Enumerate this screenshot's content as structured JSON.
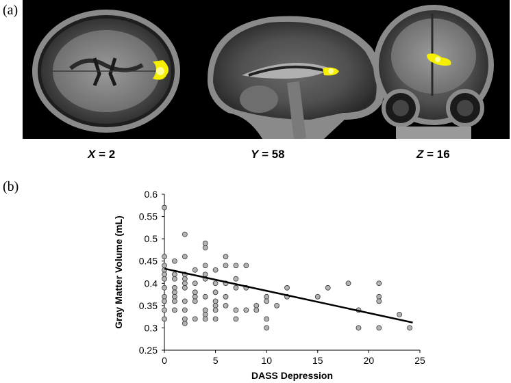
{
  "panels": {
    "a_label": "(a)",
    "b_label": "(b)"
  },
  "brain_slices": [
    {
      "axis": "X",
      "value": "2",
      "view": "axial"
    },
    {
      "axis": "Y",
      "value": "58",
      "view": "sagittal"
    },
    {
      "axis": "Z",
      "value": "16",
      "view": "coronal"
    }
  ],
  "colors": {
    "blob": "#f4f000",
    "blob_core": "#ffff99",
    "marker_fill": "#b3b3b3",
    "marker_stroke": "#333333",
    "trend_line": "#000000"
  },
  "chart_data": {
    "type": "scatter",
    "xlabel": "DASS Depression",
    "ylabel": "Gray Matter Volume (mL)",
    "xlim": [
      0,
      25
    ],
    "ylim": [
      0.25,
      0.6
    ],
    "xticks": [
      0,
      5,
      10,
      15,
      20,
      25
    ],
    "yticks": [
      0.25,
      0.3,
      0.35,
      0.4,
      0.45,
      0.5,
      0.55,
      0.6
    ],
    "grid": false,
    "trend_line": {
      "x": [
        0,
        24.3
      ],
      "y": [
        0.433,
        0.312
      ]
    },
    "points": [
      [
        0,
        0.57
      ],
      [
        0,
        0.46
      ],
      [
        0,
        0.44
      ],
      [
        0,
        0.43
      ],
      [
        0,
        0.42
      ],
      [
        0,
        0.41
      ],
      [
        0,
        0.39
      ],
      [
        0,
        0.37
      ],
      [
        0,
        0.36
      ],
      [
        0,
        0.34
      ],
      [
        0,
        0.32
      ],
      [
        1,
        0.45
      ],
      [
        1,
        0.42
      ],
      [
        1,
        0.41
      ],
      [
        1,
        0.39
      ],
      [
        1,
        0.38
      ],
      [
        1,
        0.37
      ],
      [
        1,
        0.36
      ],
      [
        1,
        0.34
      ],
      [
        2,
        0.51
      ],
      [
        2,
        0.46
      ],
      [
        2,
        0.42
      ],
      [
        2,
        0.41
      ],
      [
        2,
        0.4
      ],
      [
        2,
        0.39
      ],
      [
        2,
        0.36
      ],
      [
        2,
        0.34
      ],
      [
        2,
        0.32
      ],
      [
        2,
        0.31
      ],
      [
        3,
        0.43
      ],
      [
        3,
        0.4
      ],
      [
        3,
        0.38
      ],
      [
        3,
        0.37
      ],
      [
        3,
        0.36
      ],
      [
        3,
        0.32
      ],
      [
        4,
        0.49
      ],
      [
        4,
        0.48
      ],
      [
        4,
        0.44
      ],
      [
        4,
        0.42
      ],
      [
        4,
        0.41
      ],
      [
        4,
        0.37
      ],
      [
        4,
        0.34
      ],
      [
        4,
        0.33
      ],
      [
        4,
        0.32
      ],
      [
        5,
        0.43
      ],
      [
        5,
        0.4
      ],
      [
        5,
        0.38
      ],
      [
        5,
        0.36
      ],
      [
        5,
        0.35
      ],
      [
        5,
        0.34
      ],
      [
        5,
        0.32
      ],
      [
        6,
        0.46
      ],
      [
        6,
        0.44
      ],
      [
        6,
        0.4
      ],
      [
        6,
        0.37
      ],
      [
        6,
        0.35
      ],
      [
        7,
        0.44
      ],
      [
        7,
        0.41
      ],
      [
        7,
        0.39
      ],
      [
        7,
        0.34
      ],
      [
        7,
        0.32
      ],
      [
        8,
        0.44
      ],
      [
        8,
        0.39
      ],
      [
        8,
        0.34
      ],
      [
        9,
        0.35
      ],
      [
        9,
        0.34
      ],
      [
        10,
        0.37
      ],
      [
        10,
        0.36
      ],
      [
        10,
        0.32
      ],
      [
        10,
        0.3
      ],
      [
        11,
        0.35
      ],
      [
        12,
        0.39
      ],
      [
        12,
        0.37
      ],
      [
        15,
        0.37
      ],
      [
        16,
        0.39
      ],
      [
        18,
        0.4
      ],
      [
        19,
        0.34
      ],
      [
        19,
        0.3
      ],
      [
        21,
        0.4
      ],
      [
        21,
        0.37
      ],
      [
        21,
        0.36
      ],
      [
        21,
        0.3
      ],
      [
        23,
        0.33
      ],
      [
        24,
        0.3
      ]
    ]
  }
}
